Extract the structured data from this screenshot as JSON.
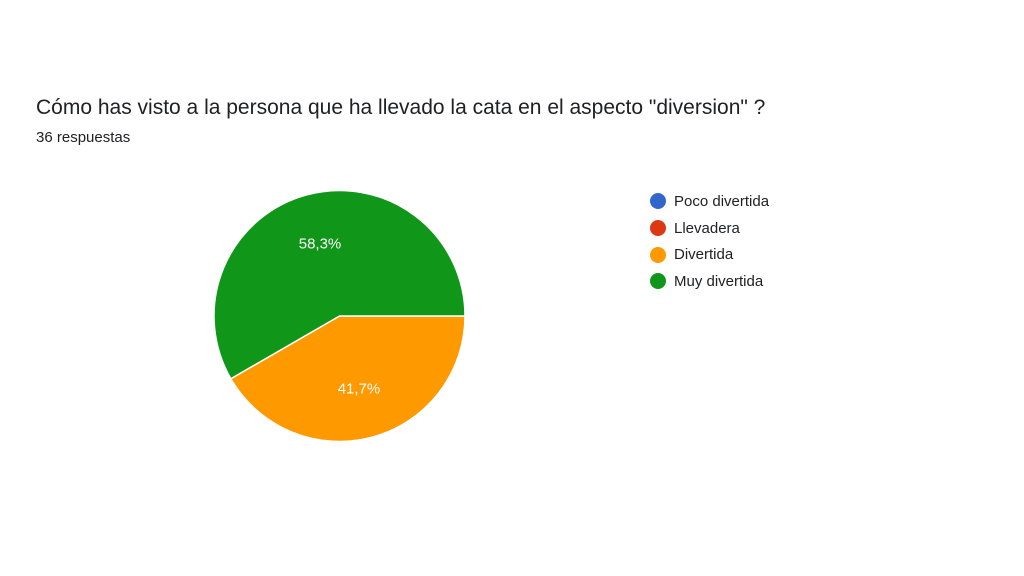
{
  "header": {
    "question": "Cómo has visto a la persona que ha llevado la cata en el aspecto \"diversion\" ?",
    "responses": "36 respuestas"
  },
  "chart_data": {
    "type": "pie",
    "title": "Cómo has visto a la persona que ha llevado la cata en el aspecto \"diversion\" ?",
    "total_responses": 36,
    "legend_position": "right",
    "categories": [
      "Poco divertida",
      "Llevadera",
      "Divertida",
      "Muy divertida"
    ],
    "values": [
      0,
      0,
      15,
      21
    ],
    "percent_labels": [
      "",
      "",
      "41,7%",
      "58,3%"
    ],
    "colors": [
      "#3366cc",
      "#dc3912",
      "#ff9900",
      "#109618"
    ]
  }
}
